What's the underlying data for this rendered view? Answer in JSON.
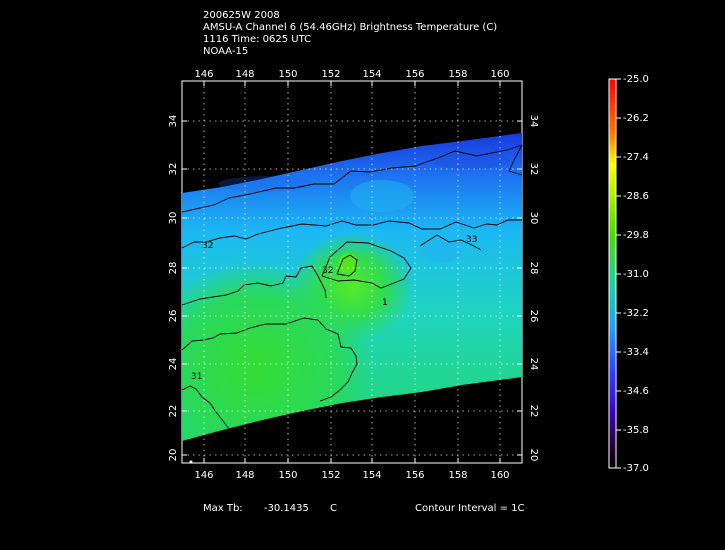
{
  "title": {
    "line1": "200625W 2008",
    "line2": "AMSU-A Channel 6 (54.46GHz) Brightness Temperature (C)",
    "line3": "1116 Time: 0625 UTC",
    "line4": "NOAA-15"
  },
  "axes": {
    "lon_ticks": [
      "146",
      "148",
      "150",
      "152",
      "154",
      "156",
      "158",
      "160"
    ],
    "lat_ticks": [
      "20",
      "22",
      "24",
      "26",
      "28",
      "30",
      "32",
      "34"
    ]
  },
  "colorbar": {
    "labels": [
      "-25.0",
      "-26.2",
      "-27.4",
      "-28.6",
      "-29.8",
      "-31.0",
      "-32.2",
      "-33.4",
      "-34.6",
      "-35.8",
      "-37.0"
    ]
  },
  "contour_labels": [
    "32",
    "32",
    "33",
    "31",
    "1"
  ],
  "footer": {
    "max_tb_label": "Max Tb:",
    "max_tb_value": "-30.1435",
    "max_tb_unit": "C",
    "contour_interval": "Contour Interval = 1C"
  },
  "colors": {
    "background": "#000000",
    "warm": "#22d94a",
    "mid": "#23d6e8",
    "cool": "#1c2ce8",
    "scale_top": "#ff0000",
    "scale_bottom": "#000000"
  }
}
